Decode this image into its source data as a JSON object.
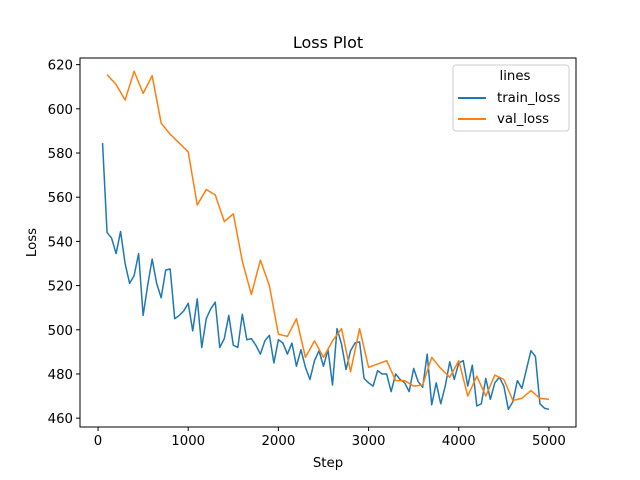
{
  "chart_data": {
    "type": "line",
    "title": "Loss Plot",
    "xlabel": "Step",
    "ylabel": "Loss",
    "xlim": [
      -200,
      5300
    ],
    "ylim": [
      456,
      623
    ],
    "xticks": [
      0,
      1000,
      2000,
      3000,
      4000,
      5000
    ],
    "yticks": [
      460,
      480,
      500,
      520,
      540,
      560,
      580,
      600,
      620
    ],
    "legend": {
      "title": "lines",
      "position": "top-right"
    },
    "grid": false,
    "series": [
      {
        "name": "train_loss",
        "color": "#1f77b4",
        "x": [
          50,
          100,
          150,
          200,
          250,
          300,
          350,
          400,
          450,
          500,
          550,
          600,
          650,
          700,
          750,
          800,
          850,
          900,
          950,
          1000,
          1050,
          1100,
          1150,
          1200,
          1250,
          1300,
          1350,
          1400,
          1450,
          1500,
          1550,
          1600,
          1650,
          1700,
          1750,
          1800,
          1850,
          1900,
          1950,
          2000,
          2050,
          2100,
          2150,
          2200,
          2250,
          2300,
          2350,
          2400,
          2450,
          2500,
          2550,
          2600,
          2650,
          2700,
          2750,
          2800,
          2850,
          2900,
          2950,
          3000,
          3050,
          3100,
          3150,
          3200,
          3250,
          3300,
          3350,
          3400,
          3450,
          3500,
          3550,
          3600,
          3650,
          3700,
          3750,
          3800,
          3850,
          3900,
          3950,
          4000,
          4050,
          4100,
          4150,
          4200,
          4250,
          4300,
          4350,
          4400,
          4450,
          4500,
          4550,
          4600,
          4650,
          4700,
          4750,
          4800,
          4850,
          4900,
          4950,
          5000
        ],
        "y": [
          584.5,
          544,
          541.5,
          534.5,
          544.5,
          530,
          521,
          524.5,
          534.5,
          506.5,
          520,
          532,
          521,
          514.5,
          527,
          527.5,
          505,
          506.5,
          508.5,
          512,
          499.5,
          514,
          492,
          505,
          509.5,
          512.5,
          492,
          496,
          506.5,
          493,
          492,
          507,
          495.5,
          496,
          493,
          489,
          495,
          497.5,
          485,
          495.5,
          494,
          489,
          494,
          483.5,
          491,
          483,
          477.5,
          486,
          490.5,
          483.5,
          491,
          475,
          500.5,
          493.5,
          482,
          490.5,
          494,
          494.5,
          478,
          476,
          474.5,
          481.5,
          480,
          480,
          472,
          480,
          477.5,
          476,
          472,
          482.5,
          476.5,
          474,
          489,
          466,
          476,
          466.5,
          474.5,
          485.5,
          477.5,
          485,
          486,
          474.5,
          484,
          465.5,
          466.5,
          478,
          468.5,
          476,
          478.5,
          474.5,
          464,
          467.5,
          477,
          473.5,
          482,
          490.5,
          488,
          466.5,
          464.5,
          464
        ]
      },
      {
        "name": "val_loss",
        "color": "#ff7f0e",
        "x": [
          100,
          200,
          300,
          400,
          500,
          600,
          700,
          800,
          900,
          1000,
          1100,
          1200,
          1300,
          1400,
          1500,
          1600,
          1700,
          1800,
          1900,
          2000,
          2100,
          2200,
          2300,
          2400,
          2500,
          2600,
          2700,
          2800,
          2900,
          3000,
          3100,
          3200,
          3300,
          3400,
          3500,
          3600,
          3700,
          3800,
          3900,
          4000,
          4100,
          4200,
          4300,
          4400,
          4500,
          4600,
          4700,
          4800,
          4900,
          5000
        ],
        "y": [
          615.5,
          611,
          604,
          617,
          607,
          615,
          593.5,
          588.5,
          584.5,
          580.5,
          556.5,
          563.5,
          561,
          549,
          552.5,
          531,
          516,
          531.5,
          520,
          498,
          497,
          505,
          487.5,
          495,
          487.5,
          495,
          500.5,
          481,
          500.5,
          483,
          484.5,
          486,
          477,
          477,
          474.5,
          475,
          487.5,
          482.5,
          478.5,
          486,
          470,
          479,
          470,
          479.5,
          477.5,
          468,
          469,
          472.5,
          469,
          468.5
        ]
      }
    ]
  }
}
